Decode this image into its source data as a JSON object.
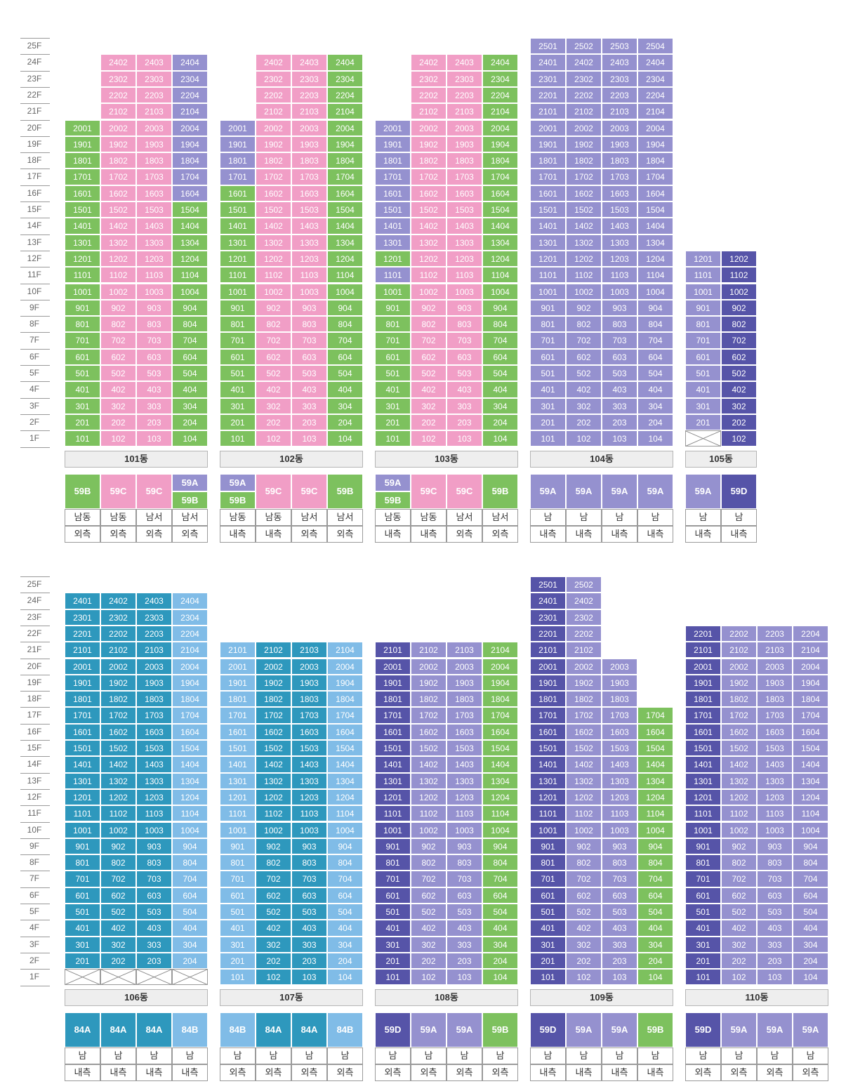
{
  "colors": {
    "green": "#7dc15e",
    "pink": "#f19ec6",
    "lavender": "#9591cf",
    "navy": "#5654a8",
    "teal": "#2e98bd",
    "lightblue": "#80bce7"
  },
  "sections": [
    {
      "floor_labels": [
        "25F",
        "24F",
        "23F",
        "22F",
        "21F",
        "20F",
        "19F",
        "18F",
        "17F",
        "16F",
        "15F",
        "14F",
        "13F",
        "12F",
        "11F",
        "10F",
        "9F",
        "8F",
        "7F",
        "6F",
        "5F",
        "4F",
        "3F",
        "2F",
        "1F"
      ],
      "buildings": [
        {
          "label": "101동",
          "lines": [
            {
              "top": 20,
              "bottom": 1,
              "color": "green",
              "type": [
                {
                  "text": "59B",
                  "color": "green"
                }
              ],
              "direction": "남동",
              "side": "외측"
            },
            {
              "top": 24,
              "bottom": 1,
              "color": "pink",
              "type": [
                {
                  "text": "59C",
                  "color": "pink"
                }
              ],
              "direction": "남동",
              "side": "외측"
            },
            {
              "top": 24,
              "bottom": 1,
              "color": "pink",
              "type": [
                {
                  "text": "59C",
                  "color": "pink"
                }
              ],
              "direction": "남서",
              "side": "외측"
            },
            {
              "top": 24,
              "bottom": 1,
              "color": "green",
              "segments": [
                {
                  "from": 16,
                  "to": 24,
                  "color": "lavender"
                }
              ],
              "type": [
                {
                  "text": "59A",
                  "color": "lavender"
                },
                {
                  "text": "59B",
                  "color": "green"
                }
              ],
              "direction": "남서",
              "side": "외측"
            }
          ]
        },
        {
          "label": "102동",
          "lines": [
            {
              "top": 20,
              "bottom": 1,
              "color": "green",
              "segments": [
                {
                  "from": 17,
                  "to": 20,
                  "color": "lavender"
                }
              ],
              "type": [
                {
                  "text": "59A",
                  "color": "lavender"
                },
                {
                  "text": "59B",
                  "color": "green"
                }
              ],
              "direction": "남동",
              "side": "내측"
            },
            {
              "top": 24,
              "bottom": 1,
              "color": "pink",
              "type": [
                {
                  "text": "59C",
                  "color": "pink"
                }
              ],
              "direction": "남동",
              "side": "내측"
            },
            {
              "top": 24,
              "bottom": 1,
              "color": "pink",
              "type": [
                {
                  "text": "59C",
                  "color": "pink"
                }
              ],
              "direction": "남서",
              "side": "외측"
            },
            {
              "top": 24,
              "bottom": 1,
              "color": "green",
              "type": [
                {
                  "text": "59B",
                  "color": "green"
                }
              ],
              "direction": "남서",
              "side": "외측"
            }
          ]
        },
        {
          "label": "103동",
          "lines": [
            {
              "top": 20,
              "bottom": 1,
              "color": "green",
              "segments": [
                {
                  "from": 13,
                  "to": 20,
                  "color": "lavender"
                },
                {
                  "from": 11,
                  "to": 11,
                  "color": "lavender"
                }
              ],
              "type": [
                {
                  "text": "59A",
                  "color": "lavender"
                },
                {
                  "text": "59B",
                  "color": "green"
                }
              ],
              "direction": "남동",
              "side": "내측"
            },
            {
              "top": 24,
              "bottom": 1,
              "color": "pink",
              "type": [
                {
                  "text": "59C",
                  "color": "pink"
                }
              ],
              "direction": "남동",
              "side": "내측"
            },
            {
              "top": 24,
              "bottom": 1,
              "color": "pink",
              "type": [
                {
                  "text": "59C",
                  "color": "pink"
                }
              ],
              "direction": "남서",
              "side": "외측"
            },
            {
              "top": 24,
              "bottom": 1,
              "color": "green",
              "type": [
                {
                  "text": "59B",
                  "color": "green"
                }
              ],
              "direction": "남서",
              "side": "외측"
            }
          ]
        },
        {
          "label": "104동",
          "lines": [
            {
              "top": 25,
              "bottom": 1,
              "color": "lavender",
              "type": [
                {
                  "text": "59A",
                  "color": "lavender"
                }
              ],
              "direction": "남",
              "side": "내측"
            },
            {
              "top": 25,
              "bottom": 1,
              "color": "lavender",
              "type": [
                {
                  "text": "59A",
                  "color": "lavender"
                }
              ],
              "direction": "남",
              "side": "내측"
            },
            {
              "top": 25,
              "bottom": 1,
              "color": "lavender",
              "type": [
                {
                  "text": "59A",
                  "color": "lavender"
                }
              ],
              "direction": "남",
              "side": "내측"
            },
            {
              "top": 25,
              "bottom": 1,
              "color": "lavender",
              "type": [
                {
                  "text": "59A",
                  "color": "lavender"
                }
              ],
              "direction": "남",
              "side": "내측"
            }
          ]
        },
        {
          "label": "105동",
          "lines": [
            {
              "top": 12,
              "bottom": 2,
              "color": "lavender",
              "type": [
                {
                  "text": "59A",
                  "color": "lavender"
                }
              ],
              "direction": "남",
              "side": "내측"
            },
            {
              "top": 12,
              "bottom": 1,
              "color": "navy",
              "type": [
                {
                  "text": "59D",
                  "color": "navy"
                }
              ],
              "direction": "남",
              "side": "내측"
            }
          ]
        }
      ]
    },
    {
      "floor_labels": [
        "25F",
        "24F",
        "23F",
        "22F",
        "21F",
        "20F",
        "19F",
        "18F",
        "17F",
        "16F",
        "15F",
        "14F",
        "13F",
        "12F",
        "11F",
        "10F",
        "9F",
        "8F",
        "7F",
        "6F",
        "5F",
        "4F",
        "3F",
        "2F",
        "1F"
      ],
      "buildings": [
        {
          "label": "106동",
          "lines": [
            {
              "top": 24,
              "bottom": 2,
              "color": "teal",
              "type": [
                {
                  "text": "84A",
                  "color": "teal"
                }
              ],
              "direction": "남",
              "side": "내측"
            },
            {
              "top": 24,
              "bottom": 2,
              "color": "teal",
              "type": [
                {
                  "text": "84A",
                  "color": "teal"
                }
              ],
              "direction": "남",
              "side": "내측"
            },
            {
              "top": 24,
              "bottom": 2,
              "color": "teal",
              "type": [
                {
                  "text": "84A",
                  "color": "teal"
                }
              ],
              "direction": "남",
              "side": "내측"
            },
            {
              "top": 24,
              "bottom": 2,
              "color": "lightblue",
              "type": [
                {
                  "text": "84B",
                  "color": "lightblue"
                }
              ],
              "direction": "남",
              "side": "내측"
            }
          ]
        },
        {
          "label": "107동",
          "lines": [
            {
              "top": 21,
              "bottom": 1,
              "color": "lightblue",
              "type": [
                {
                  "text": "84B",
                  "color": "lightblue"
                }
              ],
              "direction": "남",
              "side": "외측"
            },
            {
              "top": 21,
              "bottom": 1,
              "color": "teal",
              "type": [
                {
                  "text": "84A",
                  "color": "teal"
                }
              ],
              "direction": "남",
              "side": "외측"
            },
            {
              "top": 21,
              "bottom": 1,
              "color": "teal",
              "type": [
                {
                  "text": "84A",
                  "color": "teal"
                }
              ],
              "direction": "남",
              "side": "외측"
            },
            {
              "top": 21,
              "bottom": 1,
              "color": "lightblue",
              "type": [
                {
                  "text": "84B",
                  "color": "lightblue"
                }
              ],
              "direction": "남",
              "side": "외측"
            }
          ]
        },
        {
          "label": "108동",
          "lines": [
            {
              "top": 21,
              "bottom": 1,
              "color": "navy",
              "type": [
                {
                  "text": "59D",
                  "color": "navy"
                }
              ],
              "direction": "남",
              "side": "외측"
            },
            {
              "top": 21,
              "bottom": 1,
              "color": "lavender",
              "type": [
                {
                  "text": "59A",
                  "color": "lavender"
                }
              ],
              "direction": "남",
              "side": "외측"
            },
            {
              "top": 21,
              "bottom": 1,
              "color": "lavender",
              "type": [
                {
                  "text": "59A",
                  "color": "lavender"
                }
              ],
              "direction": "남",
              "side": "외측"
            },
            {
              "top": 21,
              "bottom": 1,
              "color": "green",
              "type": [
                {
                  "text": "59B",
                  "color": "green"
                }
              ],
              "direction": "남",
              "side": "외측"
            }
          ]
        },
        {
          "label": "109동",
          "lines": [
            {
              "top": 25,
              "bottom": 1,
              "color": "navy",
              "type": [
                {
                  "text": "59D",
                  "color": "navy"
                }
              ],
              "direction": "남",
              "side": "내측"
            },
            {
              "top": 25,
              "bottom": 1,
              "color": "lavender",
              "type": [
                {
                  "text": "59A",
                  "color": "lavender"
                }
              ],
              "direction": "남",
              "side": "내측"
            },
            {
              "top": 20,
              "bottom": 1,
              "color": "lavender",
              "type": [
                {
                  "text": "59A",
                  "color": "lavender"
                }
              ],
              "direction": "남",
              "side": "내측"
            },
            {
              "top": 17,
              "bottom": 1,
              "color": "green",
              "type": [
                {
                  "text": "59B",
                  "color": "green"
                }
              ],
              "direction": "남",
              "side": "내측"
            }
          ]
        },
        {
          "label": "110동",
          "lines": [
            {
              "top": 22,
              "bottom": 1,
              "color": "navy",
              "type": [
                {
                  "text": "59D",
                  "color": "navy"
                }
              ],
              "direction": "남",
              "side": "외측"
            },
            {
              "top": 22,
              "bottom": 1,
              "color": "lavender",
              "type": [
                {
                  "text": "59A",
                  "color": "lavender"
                }
              ],
              "direction": "남",
              "side": "외측"
            },
            {
              "top": 22,
              "bottom": 1,
              "color": "lavender",
              "type": [
                {
                  "text": "59A",
                  "color": "lavender"
                }
              ],
              "direction": "남",
              "side": "외측"
            },
            {
              "top": 22,
              "bottom": 1,
              "color": "lavender",
              "type": [
                {
                  "text": "59A",
                  "color": "lavender"
                }
              ],
              "direction": "남",
              "side": "외측"
            }
          ]
        }
      ]
    }
  ]
}
